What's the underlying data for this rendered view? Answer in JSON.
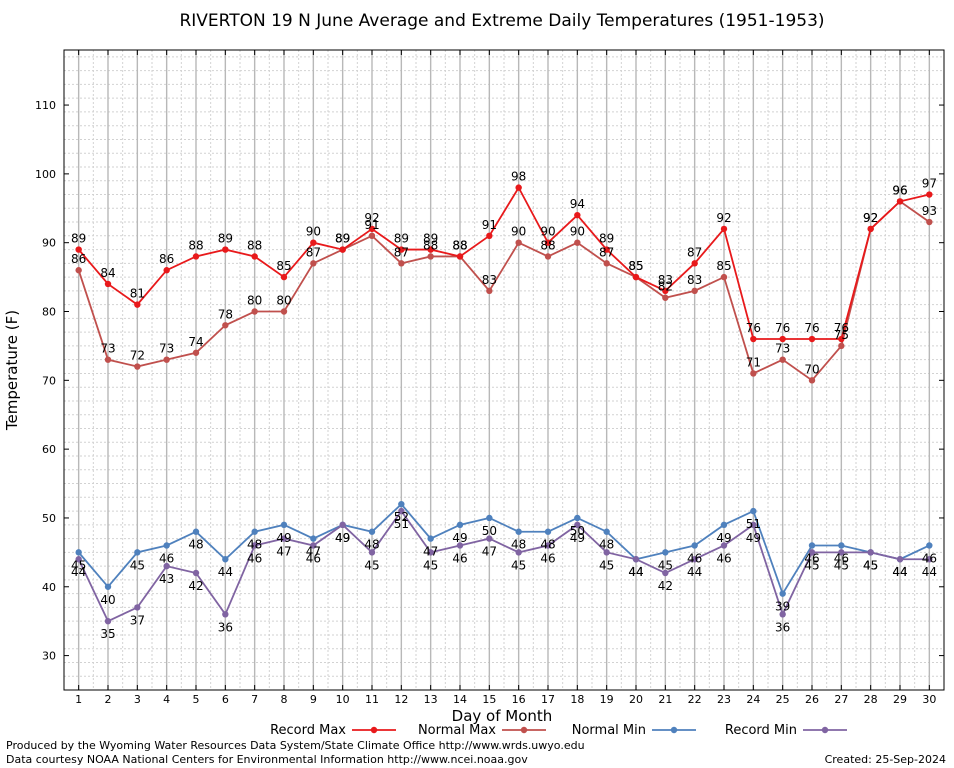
{
  "chart_data": {
    "type": "line",
    "title": "RIVERTON 19 N June Average and Extreme Daily Temperatures (1951-1953)",
    "xlabel": "Day of Month",
    "ylabel": "Temperature (F)",
    "x": [
      1,
      2,
      3,
      4,
      5,
      6,
      7,
      8,
      9,
      10,
      11,
      12,
      13,
      14,
      15,
      16,
      17,
      18,
      19,
      20,
      21,
      22,
      23,
      24,
      25,
      26,
      27,
      28,
      29,
      30
    ],
    "xlim": [
      0.5,
      30.5
    ],
    "ylim": [
      25,
      118
    ],
    "yticks": [
      30,
      40,
      50,
      60,
      70,
      80,
      90,
      100,
      110
    ],
    "grid": true,
    "legend_position": "bottom",
    "series": [
      {
        "name": "Record Max",
        "color": "#e8191b",
        "values": [
          89,
          84,
          81,
          86,
          88,
          89,
          88,
          85,
          90,
          89,
          92,
          89,
          89,
          88,
          91,
          98,
          90,
          94,
          89,
          85,
          83,
          87,
          92,
          76,
          76,
          76,
          76,
          92,
          96,
          97
        ]
      },
      {
        "name": "Normal Max",
        "color": "#c0504d",
        "values": [
          86,
          73,
          72,
          73,
          74,
          78,
          80,
          80,
          87,
          89,
          91,
          87,
          88,
          88,
          83,
          90,
          88,
          90,
          87,
          85,
          82,
          83,
          85,
          71,
          73,
          70,
          75,
          92,
          96,
          93
        ]
      },
      {
        "name": "Normal Min",
        "color": "#4f81bd",
        "values": [
          45,
          40,
          45,
          46,
          48,
          44,
          48,
          49,
          47,
          49,
          48,
          52,
          47,
          49,
          50,
          48,
          48,
          50,
          48,
          44,
          45,
          46,
          49,
          51,
          39,
          46,
          46,
          45,
          44,
          46
        ]
      },
      {
        "name": "Record Min",
        "color": "#8064a2",
        "values": [
          44,
          35,
          37,
          43,
          42,
          36,
          46,
          47,
          46,
          49,
          45,
          51,
          45,
          46,
          47,
          45,
          46,
          49,
          45,
          44,
          42,
          44,
          46,
          49,
          36,
          45,
          45,
          45,
          44,
          44
        ]
      }
    ]
  },
  "footer": {
    "produced_by": "Produced by the Wyoming Water Resources Data System/State Climate Office http://www.wrds.uwyo.edu",
    "data_courtesy": "Data courtesy NOAA National Centers for Environmental Information http://www.ncei.noaa.gov",
    "created": "Created:  25-Sep-2024"
  }
}
